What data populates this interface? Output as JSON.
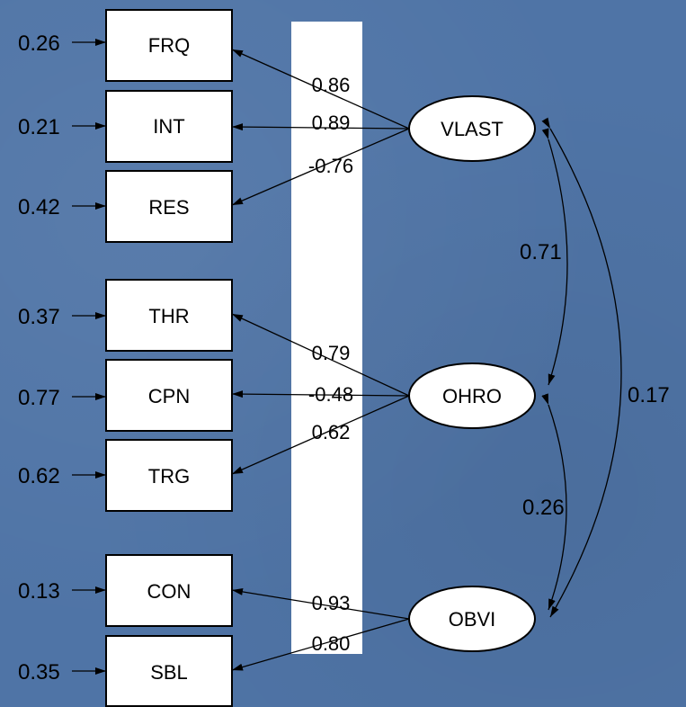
{
  "indicators": [
    {
      "id": "FRQ",
      "label": "FRQ",
      "error": "0.26"
    },
    {
      "id": "INT",
      "label": "INT",
      "error": "0.21"
    },
    {
      "id": "RES",
      "label": "RES",
      "error": "0.42"
    },
    {
      "id": "THR",
      "label": "THR",
      "error": "0.37"
    },
    {
      "id": "CPN",
      "label": "CPN",
      "error": "0.77"
    },
    {
      "id": "TRG",
      "label": "TRG",
      "error": "0.62"
    },
    {
      "id": "CON",
      "label": "CON",
      "error": "0.13"
    },
    {
      "id": "SBL",
      "label": "SBL",
      "error": "0.35"
    }
  ],
  "latents": [
    {
      "id": "VLAST",
      "label": "VLAST"
    },
    {
      "id": "OHRO",
      "label": "OHRO"
    },
    {
      "id": "OBVI",
      "label": "OBVI"
    }
  ],
  "loadings": [
    {
      "from": "VLAST",
      "to": "FRQ",
      "value": "0.86"
    },
    {
      "from": "VLAST",
      "to": "INT",
      "value": "0.89"
    },
    {
      "from": "VLAST",
      "to": "RES",
      "value": "-0.76"
    },
    {
      "from": "OHRO",
      "to": "THR",
      "value": "0.79"
    },
    {
      "from": "OHRO",
      "to": "CPN",
      "value": "-0.48"
    },
    {
      "from": "OHRO",
      "to": "TRG",
      "value": "0.62"
    },
    {
      "from": "OBVI",
      "to": "CON",
      "value": "0.93"
    },
    {
      "from": "OBVI",
      "to": "SBL",
      "value": "0.80"
    }
  ],
  "correlations": [
    {
      "a": "VLAST",
      "b": "OHRO",
      "value": "0.71"
    },
    {
      "a": "OHRO",
      "b": "OBVI",
      "value": "0.26"
    },
    {
      "a": "VLAST",
      "b": "OBVI",
      "value": "0.17"
    }
  ]
}
